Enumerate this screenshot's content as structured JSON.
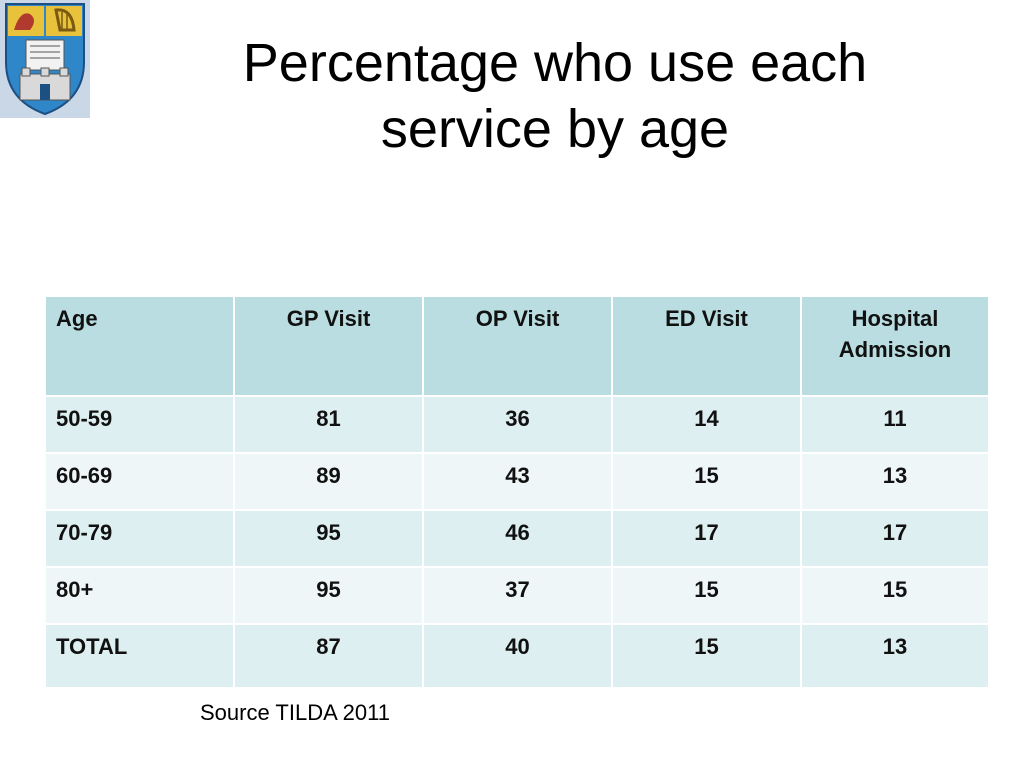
{
  "slide": {
    "title": "Percentage who use each service by age",
    "logo_icon": "college-crest-icon",
    "source": "Source TILDA 2011"
  },
  "table": {
    "headers": [
      "Age",
      "GP Visit",
      "OP Visit",
      "ED Visit",
      "Hospital Admission"
    ],
    "rows": [
      [
        "50-59",
        "81",
        "36",
        "14",
        "11"
      ],
      [
        "60-69",
        "89",
        "43",
        "15",
        "13"
      ],
      [
        "70-79",
        "95",
        "46",
        "17",
        "17"
      ],
      [
        "80+",
        "95",
        "37",
        "15",
        "15"
      ],
      [
        "TOTAL",
        "87",
        "40",
        "15",
        "13"
      ]
    ]
  },
  "colors": {
    "header_bg": "#b9dde0",
    "row_odd_bg": "#ddeff0",
    "row_even_bg": "#eef6f7"
  }
}
